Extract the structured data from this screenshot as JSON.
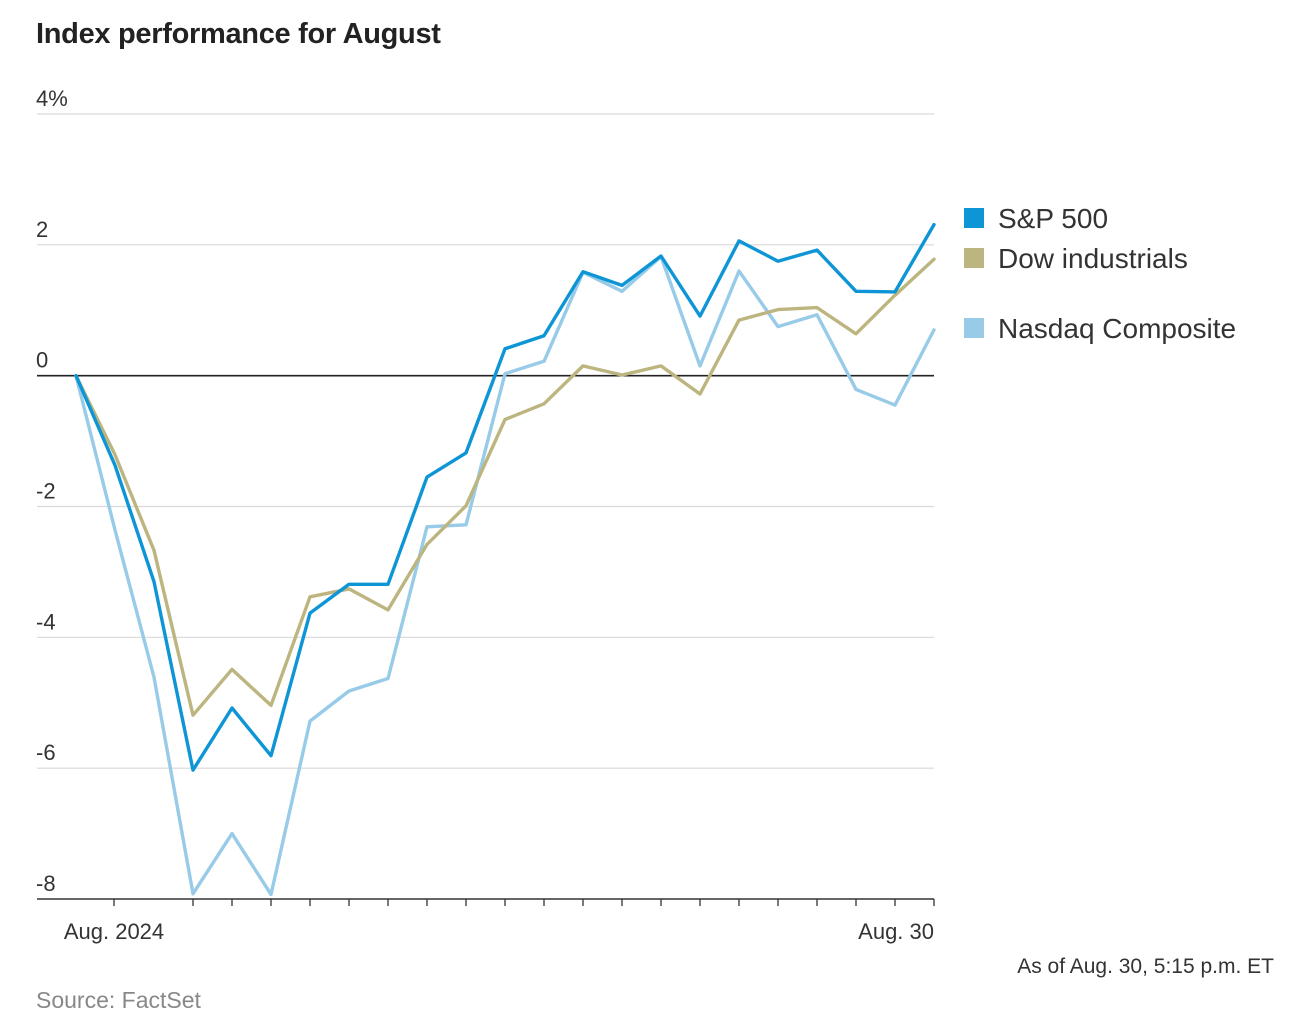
{
  "chart_data": {
    "type": "line",
    "title": "Index performance for August",
    "xlabel": "",
    "ylabel": "",
    "ylim": [
      -8,
      4
    ],
    "y_ticks": [
      "4%",
      "2",
      "0",
      "-2",
      "-4",
      "-6",
      "-8"
    ],
    "y_tick_values": [
      4,
      2,
      0,
      -2,
      -4,
      -6,
      -8
    ],
    "x_tick_labels": [
      "Aug. 2024",
      "Aug. 30"
    ],
    "grid": true,
    "zero_line": true,
    "legend_position": "right",
    "series": [
      {
        "name": "S&P 500",
        "color": "#0e95d6",
        "values": [
          0,
          -1.37,
          -3.15,
          -6.03,
          -5.08,
          -5.81,
          -3.63,
          -3.19,
          -3.19,
          -1.55,
          -1.18,
          0.41,
          0.61,
          1.59,
          1.38,
          1.83,
          0.91,
          2.06,
          1.75,
          1.92,
          1.29,
          1.28,
          2.31
        ]
      },
      {
        "name": "Dow industrials",
        "color": "#bdb57f",
        "values": [
          0,
          -1.21,
          -2.67,
          -5.19,
          -4.49,
          -5.04,
          -3.38,
          -3.26,
          -3.58,
          -2.58,
          -1.99,
          -0.67,
          -0.43,
          0.15,
          0.01,
          0.15,
          -0.28,
          0.85,
          1.01,
          1.04,
          0.64,
          1.23,
          1.78
        ]
      },
      {
        "name": "Nasdaq Composite",
        "color": "#97cbe8",
        "values": [
          0,
          -2.36,
          -4.61,
          -7.92,
          -7.0,
          -7.93,
          -5.28,
          -4.82,
          -4.63,
          -2.31,
          -2.28,
          0.03,
          0.22,
          1.58,
          1.29,
          1.82,
          0.15,
          1.6,
          0.75,
          0.93,
          -0.21,
          -0.45,
          0.7
        ]
      }
    ]
  },
  "note": "As of Aug. 30, 5:15 p.m. ET",
  "source": "Source: FactSet"
}
